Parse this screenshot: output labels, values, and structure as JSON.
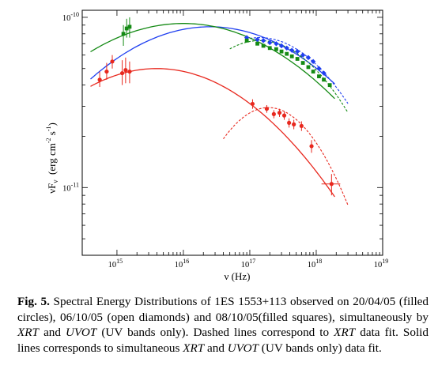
{
  "chart_data": {
    "type": "scatter",
    "title": "",
    "xlabel": "ν (Hz)",
    "ylabel": "νF",
    "ylabel_sub": "ν",
    "yunit": "(erg cm",
    "yunit_exp1": "-2",
    "yunit_s": " s",
    "yunit_exp2": "-1",
    "yunit_close": ")",
    "xscale": "log",
    "yscale": "log",
    "xlim": [
      300000000000000.0,
      1e+19
    ],
    "ylim": [
      4e-12,
      1.1e-10
    ],
    "xticklabels": [
      {
        "base": "10",
        "exp": "15",
        "value": 1000000000000000.0
      },
      {
        "base": "10",
        "exp": "16",
        "value": 1e+16
      },
      {
        "base": "10",
        "exp": "17",
        "value": 1e+17
      },
      {
        "base": "10",
        "exp": "18",
        "value": 1e+18
      },
      {
        "base": "10",
        "exp": "19",
        "value": 1e+19
      }
    ],
    "yticklabels": [
      {
        "base": "10",
        "exp": "-11",
        "value": 1e-11
      },
      {
        "base": "10",
        "exp": "-10",
        "value": 1e-10
      }
    ],
    "grid": false,
    "legend": null,
    "series": [
      {
        "epoch": "20/04/05",
        "marker": "filled circle",
        "color": "#e8281e",
        "points": [
          {
            "x": 550000000000000.0,
            "y": 4.3e-11,
            "ylo": 3.9e-11,
            "yhi": 4.8e-11
          },
          {
            "x": 700000000000000.0,
            "y": 4.8e-11,
            "ylo": 4.3e-11,
            "yhi": 5.4e-11
          },
          {
            "x": 850000000000000.0,
            "y": 5.5e-11,
            "ylo": 5e-11,
            "yhi": 6e-11
          },
          {
            "x": 1200000000000000.0,
            "y": 4.7e-11,
            "ylo": 4e-11,
            "yhi": 5.6e-11
          },
          {
            "x": 1350000000000000.0,
            "y": 4.9e-11,
            "ylo": 4.1e-11,
            "yhi": 5.8e-11
          },
          {
            "x": 1550000000000000.0,
            "y": 4.8e-11,
            "ylo": 4.1e-11,
            "yhi": 5.5e-11
          },
          {
            "x": 1.1e+17,
            "y": 3.1e-11,
            "ylo": 2.9e-11,
            "yhi": 3.3e-11
          },
          {
            "x": 1.8e+17,
            "y": 2.9e-11,
            "ylo": 2.75e-11,
            "yhi": 3.05e-11
          },
          {
            "x": 2.3e+17,
            "y": 2.7e-11,
            "ylo": 2.55e-11,
            "yhi": 2.85e-11
          },
          {
            "x": 2.8e+17,
            "y": 2.75e-11,
            "ylo": 2.6e-11,
            "yhi": 2.9e-11
          },
          {
            "x": 3.3e+17,
            "y": 2.65e-11,
            "ylo": 2.5e-11,
            "yhi": 2.8e-11
          },
          {
            "x": 3.9e+17,
            "y": 2.4e-11,
            "ylo": 2.25e-11,
            "yhi": 2.55e-11
          },
          {
            "x": 4.6e+17,
            "y": 2.35e-11,
            "ylo": 2.2e-11,
            "yhi": 2.5e-11
          },
          {
            "x": 6e+17,
            "y": 2.3e-11,
            "ylo": 2.15e-11,
            "yhi": 2.45e-11
          },
          {
            "x": 8.5e+17,
            "y": 1.75e-11,
            "ylo": 1.6e-11,
            "yhi": 1.9e-11
          },
          {
            "x": 1.7e+18,
            "y": 1.05e-11,
            "ylo": 9e-12,
            "yhi": 1.2e-11,
            "xlo": 1.2e+18,
            "xhi": 2.3e+18
          }
        ],
        "fits": {
          "uvot_xrt": {
            "peak_logx": 15.6,
            "peak_y": 5e-11,
            "curv": 0.105,
            "from": 400000000000000.0,
            "to": 1.9e+18
          },
          "xrt": {
            "peak_logx": 17.28,
            "peak_y": 2.95e-11,
            "curv": 0.4,
            "from": 4e+16,
            "to": 3e+18
          }
        }
      },
      {
        "epoch": "06/10/05",
        "marker": "open diamond",
        "color": "#1f3ff0",
        "points": [
          {
            "x": 9e+16,
            "y": 7.6e-11
          },
          {
            "x": 1.3e+17,
            "y": 7.4e-11
          },
          {
            "x": 1.6e+17,
            "y": 7.3e-11
          },
          {
            "x": 2e+17,
            "y": 7.1e-11
          },
          {
            "x": 2.5e+17,
            "y": 7e-11
          },
          {
            "x": 3e+17,
            "y": 6.8e-11
          },
          {
            "x": 3.6e+17,
            "y": 6.6e-11
          },
          {
            "x": 4.3e+17,
            "y": 6.4e-11
          },
          {
            "x": 5.2e+17,
            "y": 6.3e-11
          },
          {
            "x": 6.3e+17,
            "y": 6e-11
          },
          {
            "x": 7.6e+17,
            "y": 5.8e-11
          },
          {
            "x": 9e+17,
            "y": 5.5e-11
          },
          {
            "x": 1.1e+18,
            "y": 5e-11
          },
          {
            "x": 1.3e+18,
            "y": 4.7e-11
          }
        ],
        "fits": {
          "uvot_xrt": {
            "peak_logx": 16.4,
            "peak_y": 8.8e-11,
            "curv": 0.095,
            "from": 400000000000000.0,
            "to": 1.9e+18
          },
          "xrt": {
            "peak_logx": 17.15,
            "peak_y": 7.6e-11,
            "curv": 0.22,
            "from": 1e+17,
            "to": 3e+18
          }
        }
      },
      {
        "epoch": "08/10/05",
        "marker": "filled square",
        "color": "#148a14",
        "points": [
          {
            "x": 1250000000000000.0,
            "y": 8e-11,
            "ylo": 6.8e-11,
            "yhi": 9e-11
          },
          {
            "x": 1400000000000000.0,
            "y": 8.6e-11,
            "ylo": 7.6e-11,
            "yhi": 9.8e-11
          },
          {
            "x": 1550000000000000.0,
            "y": 8.8e-11,
            "ylo": 7.6e-11,
            "yhi": 1e-10
          },
          {
            "x": 9e+16,
            "y": 7.3e-11
          },
          {
            "x": 1.3e+17,
            "y": 7e-11
          },
          {
            "x": 1.6e+17,
            "y": 6.8e-11
          },
          {
            "x": 2e+17,
            "y": 6.6e-11
          },
          {
            "x": 2.5e+17,
            "y": 6.5e-11
          },
          {
            "x": 3e+17,
            "y": 6.3e-11
          },
          {
            "x": 3.6e+17,
            "y": 6.1e-11
          },
          {
            "x": 4.3e+17,
            "y": 5.9e-11
          },
          {
            "x": 5.2e+17,
            "y": 5.7e-11
          },
          {
            "x": 6.3e+17,
            "y": 5.4e-11
          },
          {
            "x": 7.6e+17,
            "y": 5.1e-11
          },
          {
            "x": 9e+17,
            "y": 4.8e-11
          },
          {
            "x": 1.1e+18,
            "y": 4.5e-11
          },
          {
            "x": 1.3e+18,
            "y": 4.3e-11
          },
          {
            "x": 1.6e+18,
            "y": 4e-11
          }
        ],
        "fits": {
          "uvot_xrt": {
            "peak_logx": 16.0,
            "peak_y": 9.2e-11,
            "curv": 0.085,
            "from": 400000000000000.0,
            "to": 1.9e+18
          },
          "xrt": {
            "peak_logx": 17.15,
            "peak_y": 7.3e-11,
            "curv": 0.24,
            "from": 5e+16,
            "to": 3e+18
          }
        }
      }
    ]
  },
  "caption": {
    "label": "Fig. 5.",
    "segments": [
      {
        "text": " Spectral Energy Distributions of 1ES 1553+113 observed on 20/04/05 (filled circles), 06/10/05 (open diamonds) and 08/10/05(filled squares), simultaneously by ",
        "italic": false
      },
      {
        "text": "XRT",
        "italic": true
      },
      {
        "text": " and ",
        "italic": false
      },
      {
        "text": "UVOT",
        "italic": true
      },
      {
        "text": " (UV bands only). Dashed lines correspond to ",
        "italic": false
      },
      {
        "text": "XRT",
        "italic": true
      },
      {
        "text": " data fit. Solid lines corresponds to simultaneous ",
        "italic": false
      },
      {
        "text": "XRT",
        "italic": true
      },
      {
        "text": " and ",
        "italic": false
      },
      {
        "text": "UVOT",
        "italic": true
      },
      {
        "text": " (UV bands only) data fit.",
        "italic": false
      }
    ]
  }
}
